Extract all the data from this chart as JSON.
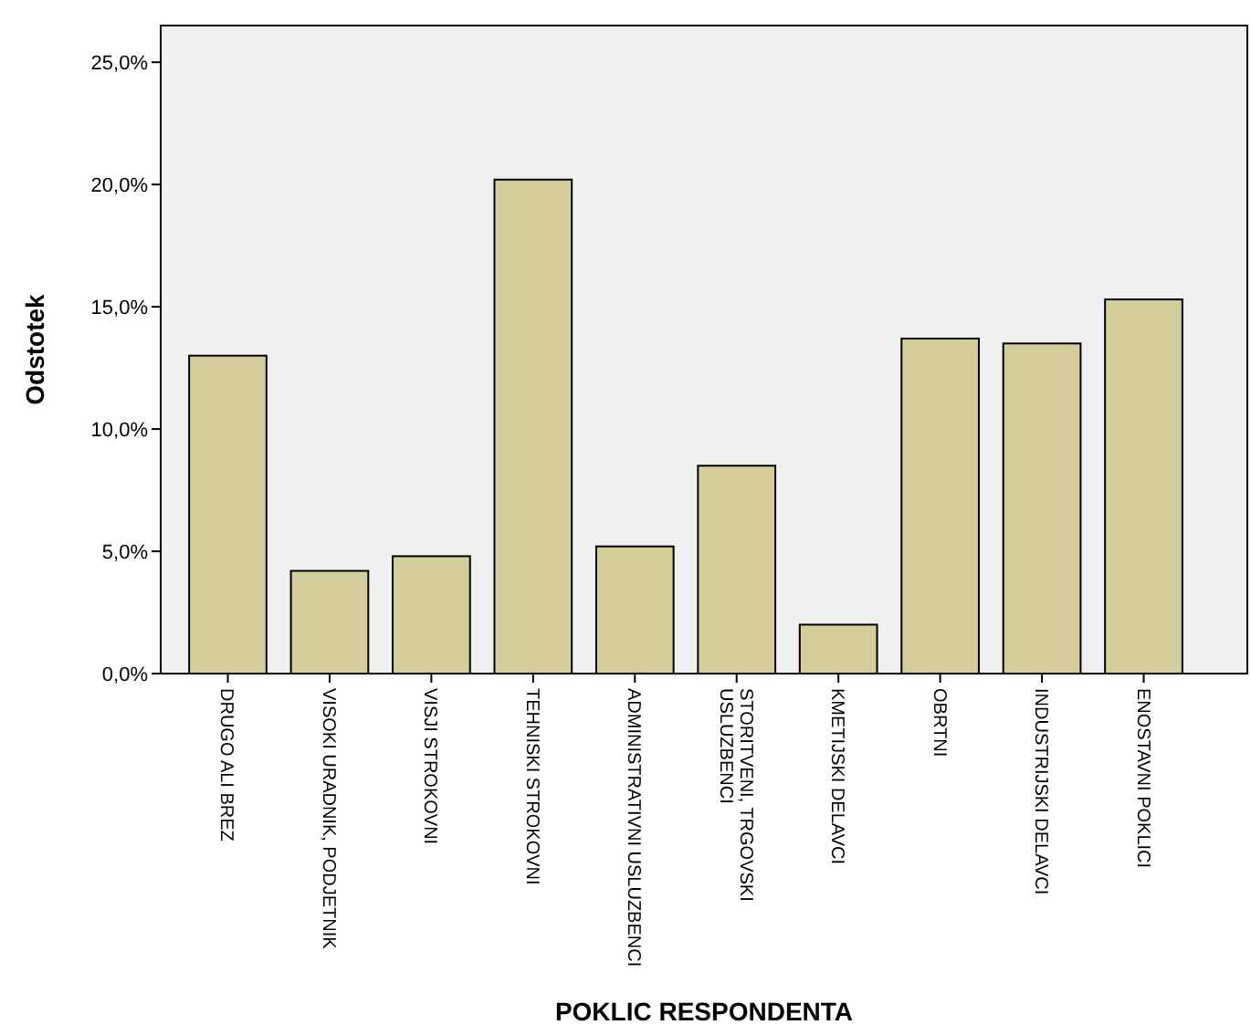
{
  "chart_data": {
    "type": "bar",
    "xlabel": "POKLIC RESPONDENTA",
    "ylabel": "Odstotek",
    "categories": [
      "DRUGO ALI BREZ",
      "VISOKI URADNIK, PODJETNIK",
      "VISJI STROKOVNI",
      "TEHNISKI STROKOVNI",
      "ADMINISTRATIVNI USLUZBENCI",
      "STORITVENI, TRGOVSKI USLUZBENCI",
      "KMETIJSKI DELAVCI",
      "OBRTNI",
      "INDUSTRIJSKI DELAVCI",
      "ENOSTAVNI POKLICI"
    ],
    "values": [
      13.0,
      4.2,
      4.8,
      20.2,
      5.2,
      8.5,
      2.0,
      13.7,
      13.5,
      15.3
    ],
    "color": "#d3ce9a",
    "ylim": [
      0,
      26.5
    ],
    "yticks": [
      {
        "value": 0,
        "label": "0,0%"
      },
      {
        "value": 5,
        "label": "5,0%"
      },
      {
        "value": 10,
        "label": "10,0%"
      },
      {
        "value": 15,
        "label": "15,0%"
      },
      {
        "value": 20,
        "label": "20,0%"
      },
      {
        "value": 25,
        "label": "25,0%"
      }
    ],
    "grid": false
  }
}
